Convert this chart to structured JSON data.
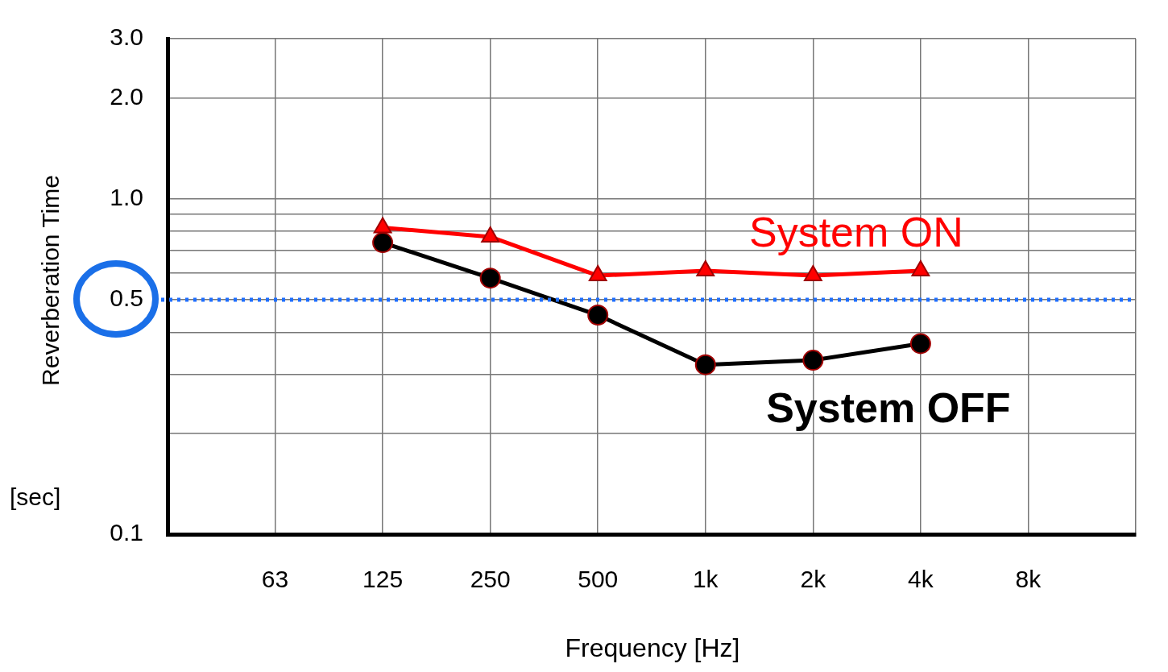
{
  "chart_data": {
    "type": "line",
    "xlabel": "Frequency [Hz]",
    "ylabel": "Reverberation Time",
    "annotations": [
      "[sec]"
    ],
    "categories": [
      null,
      "63",
      "125",
      "250",
      "500",
      "1k",
      "2k",
      "4k",
      "8k",
      null
    ],
    "series": [
      {
        "name": "System ON",
        "color": "#ff0000",
        "marker": "triangle",
        "values": [
          null,
          null,
          0.82,
          0.77,
          0.59,
          0.61,
          0.59,
          0.61,
          null,
          null
        ]
      },
      {
        "name": "System OFF",
        "color": "#000000",
        "marker": "circle",
        "values": [
          null,
          null,
          0.74,
          0.58,
          0.45,
          0.32,
          0.33,
          0.37,
          null,
          null
        ]
      }
    ],
    "log": "y",
    "ylim": [
      0.1,
      3.0
    ],
    "yticks": [
      0.1,
      {
        "value": 0.2,
        "label": null
      },
      {
        "value": 0.3,
        "label": null
      },
      {
        "value": 0.4,
        "label": null
      },
      0.5,
      {
        "value": 0.6,
        "label": null
      },
      {
        "value": 0.7,
        "label": null
      },
      {
        "value": 0.8,
        "label": null
      },
      {
        "value": 0.9,
        "label": null
      },
      {
        "value": 1,
        "label": "1.0"
      },
      {
        "value": 2,
        "label": "2.0"
      },
      {
        "value": 3,
        "label": "3.0"
      }
    ],
    "ref_lines": [
      {
        "axis": "y",
        "value": 0.5,
        "color": "#1f6fff",
        "line_style": "dotted"
      }
    ],
    "grid": true,
    "legend": false,
    "line_style": "solid"
  }
}
